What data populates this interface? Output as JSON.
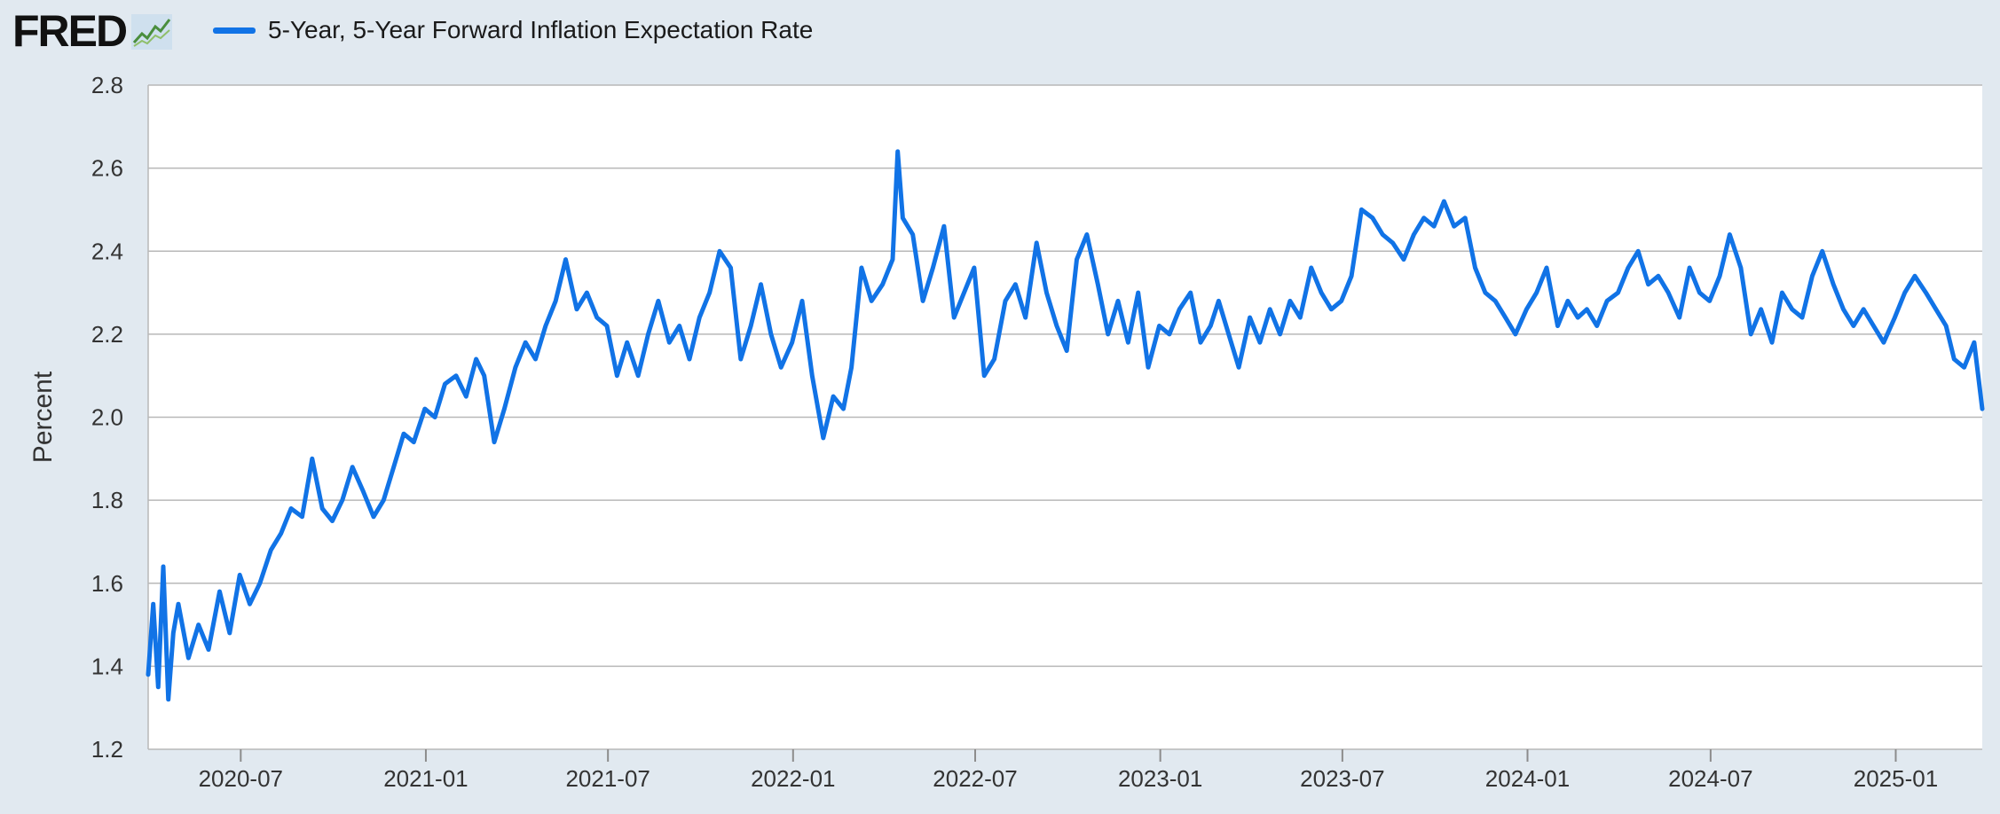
{
  "header": {
    "logo_text": "FRED",
    "logo_icon": "trend-line-icon",
    "legend_label": "5-Year, 5-Year Forward Inflation Expectation Rate",
    "legend_color": "#1173e6"
  },
  "chart_data": {
    "type": "line",
    "title": "",
    "ylabel": "Percent",
    "xlabel": "",
    "ylim": [
      1.2,
      2.8
    ],
    "yticks": [
      "1.2",
      "1.4",
      "1.6",
      "1.8",
      "2.0",
      "2.2",
      "2.4",
      "2.6",
      "2.8"
    ],
    "xlim": [
      "2020-03-31",
      "2025-03-28"
    ],
    "xticks": [
      "2020-07",
      "2021-01",
      "2021-07",
      "2022-01",
      "2022-07",
      "2023-01",
      "2023-07",
      "2024-01",
      "2024-07",
      "2025-01"
    ],
    "grid": true,
    "legend": "top-left",
    "series": [
      {
        "name": "5-Year, 5-Year Forward Inflation Expectation Rate",
        "color": "#1173e6",
        "x": [
          "2020-03-31",
          "2020-04-05",
          "2020-04-10",
          "2020-04-15",
          "2020-04-20",
          "2020-04-25",
          "2020-04-30",
          "2020-05-10",
          "2020-05-20",
          "2020-05-30",
          "2020-06-10",
          "2020-06-20",
          "2020-06-30",
          "2020-07-10",
          "2020-07-20",
          "2020-07-31",
          "2020-08-10",
          "2020-08-20",
          "2020-08-31",
          "2020-09-10",
          "2020-09-20",
          "2020-09-30",
          "2020-10-10",
          "2020-10-20",
          "2020-10-31",
          "2020-11-10",
          "2020-11-20",
          "2020-11-30",
          "2020-12-10",
          "2020-12-20",
          "2020-12-31",
          "2021-01-10",
          "2021-01-20",
          "2021-01-31",
          "2021-02-10",
          "2021-02-20",
          "2021-02-28",
          "2021-03-10",
          "2021-03-20",
          "2021-03-31",
          "2021-04-10",
          "2021-04-20",
          "2021-04-30",
          "2021-05-10",
          "2021-05-20",
          "2021-05-31",
          "2021-06-10",
          "2021-06-20",
          "2021-06-30",
          "2021-07-10",
          "2021-07-20",
          "2021-07-31",
          "2021-08-10",
          "2021-08-20",
          "2021-08-31",
          "2021-09-10",
          "2021-09-20",
          "2021-09-30",
          "2021-10-10",
          "2021-10-20",
          "2021-10-31",
          "2021-11-10",
          "2021-11-20",
          "2021-11-30",
          "2021-12-10",
          "2021-12-20",
          "2021-12-31",
          "2022-01-10",
          "2022-01-20",
          "2022-01-31",
          "2022-02-10",
          "2022-02-20",
          "2022-02-28",
          "2022-03-10",
          "2022-03-20",
          "2022-03-31",
          "2022-04-10",
          "2022-04-15",
          "2022-04-20",
          "2022-04-30",
          "2022-05-10",
          "2022-05-20",
          "2022-05-31",
          "2022-06-10",
          "2022-06-20",
          "2022-06-30",
          "2022-07-10",
          "2022-07-20",
          "2022-07-31",
          "2022-08-10",
          "2022-08-20",
          "2022-08-31",
          "2022-09-10",
          "2022-09-20",
          "2022-09-30",
          "2022-10-10",
          "2022-10-20",
          "2022-10-31",
          "2022-11-10",
          "2022-11-20",
          "2022-11-30",
          "2022-12-10",
          "2022-12-20",
          "2022-12-31",
          "2023-01-10",
          "2023-01-20",
          "2023-01-31",
          "2023-02-10",
          "2023-02-20",
          "2023-02-28",
          "2023-03-10",
          "2023-03-20",
          "2023-03-31",
          "2023-04-10",
          "2023-04-20",
          "2023-04-30",
          "2023-05-10",
          "2023-05-20",
          "2023-05-31",
          "2023-06-10",
          "2023-06-20",
          "2023-06-30",
          "2023-07-10",
          "2023-07-20",
          "2023-07-31",
          "2023-08-10",
          "2023-08-20",
          "2023-08-31",
          "2023-09-10",
          "2023-09-20",
          "2023-09-30",
          "2023-10-10",
          "2023-10-20",
          "2023-10-31",
          "2023-11-10",
          "2023-11-20",
          "2023-11-30",
          "2023-12-10",
          "2023-12-20",
          "2023-12-31",
          "2024-01-10",
          "2024-01-20",
          "2024-01-31",
          "2024-02-10",
          "2024-02-20",
          "2024-02-29",
          "2024-03-10",
          "2024-03-20",
          "2024-03-31",
          "2024-04-10",
          "2024-04-20",
          "2024-04-30",
          "2024-05-10",
          "2024-05-20",
          "2024-05-31",
          "2024-06-10",
          "2024-06-20",
          "2024-06-30",
          "2024-07-10",
          "2024-07-20",
          "2024-07-31",
          "2024-08-10",
          "2024-08-20",
          "2024-08-31",
          "2024-09-10",
          "2024-09-20",
          "2024-09-30",
          "2024-10-10",
          "2024-10-20",
          "2024-10-31",
          "2024-11-10",
          "2024-11-20",
          "2024-11-30",
          "2024-12-10",
          "2024-12-20",
          "2024-12-31",
          "2025-01-10",
          "2025-01-20",
          "2025-01-31",
          "2025-02-10",
          "2025-02-20",
          "2025-02-28",
          "2025-03-10",
          "2025-03-20",
          "2025-03-28"
        ],
        "values": [
          1.38,
          1.55,
          1.35,
          1.64,
          1.32,
          1.48,
          1.55,
          1.42,
          1.5,
          1.44,
          1.58,
          1.48,
          1.62,
          1.55,
          1.6,
          1.68,
          1.72,
          1.78,
          1.76,
          1.9,
          1.78,
          1.75,
          1.8,
          1.88,
          1.82,
          1.76,
          1.8,
          1.88,
          1.96,
          1.94,
          2.02,
          2.0,
          2.08,
          2.1,
          2.05,
          2.14,
          2.1,
          1.94,
          2.02,
          2.12,
          2.18,
          2.14,
          2.22,
          2.28,
          2.38,
          2.26,
          2.3,
          2.24,
          2.22,
          2.1,
          2.18,
          2.1,
          2.2,
          2.28,
          2.18,
          2.22,
          2.14,
          2.24,
          2.3,
          2.4,
          2.36,
          2.14,
          2.22,
          2.32,
          2.2,
          2.12,
          2.18,
          2.28,
          2.1,
          1.95,
          2.05,
          2.02,
          2.12,
          2.36,
          2.28,
          2.32,
          2.38,
          2.64,
          2.48,
          2.44,
          2.28,
          2.36,
          2.46,
          2.24,
          2.3,
          2.36,
          2.1,
          2.14,
          2.28,
          2.32,
          2.24,
          2.42,
          2.3,
          2.22,
          2.16,
          2.38,
          2.44,
          2.32,
          2.2,
          2.28,
          2.18,
          2.3,
          2.12,
          2.22,
          2.2,
          2.26,
          2.3,
          2.18,
          2.22,
          2.28,
          2.2,
          2.12,
          2.24,
          2.18,
          2.26,
          2.2,
          2.28,
          2.24,
          2.36,
          2.3,
          2.26,
          2.28,
          2.34,
          2.5,
          2.48,
          2.44,
          2.42,
          2.38,
          2.44,
          2.48,
          2.46,
          2.52,
          2.46,
          2.48,
          2.36,
          2.3,
          2.28,
          2.24,
          2.2,
          2.26,
          2.3,
          2.36,
          2.22,
          2.28,
          2.24,
          2.26,
          2.22,
          2.28,
          2.3,
          2.36,
          2.4,
          2.32,
          2.34,
          2.3,
          2.24,
          2.36,
          2.3,
          2.28,
          2.34,
          2.44,
          2.36,
          2.2,
          2.26,
          2.18,
          2.3,
          2.26,
          2.24,
          2.34,
          2.4,
          2.32,
          2.26,
          2.22,
          2.26,
          2.22,
          2.18,
          2.24,
          2.3,
          2.34,
          2.3,
          2.26,
          2.22,
          2.14,
          2.12,
          2.18,
          2.02
        ]
      }
    ]
  }
}
